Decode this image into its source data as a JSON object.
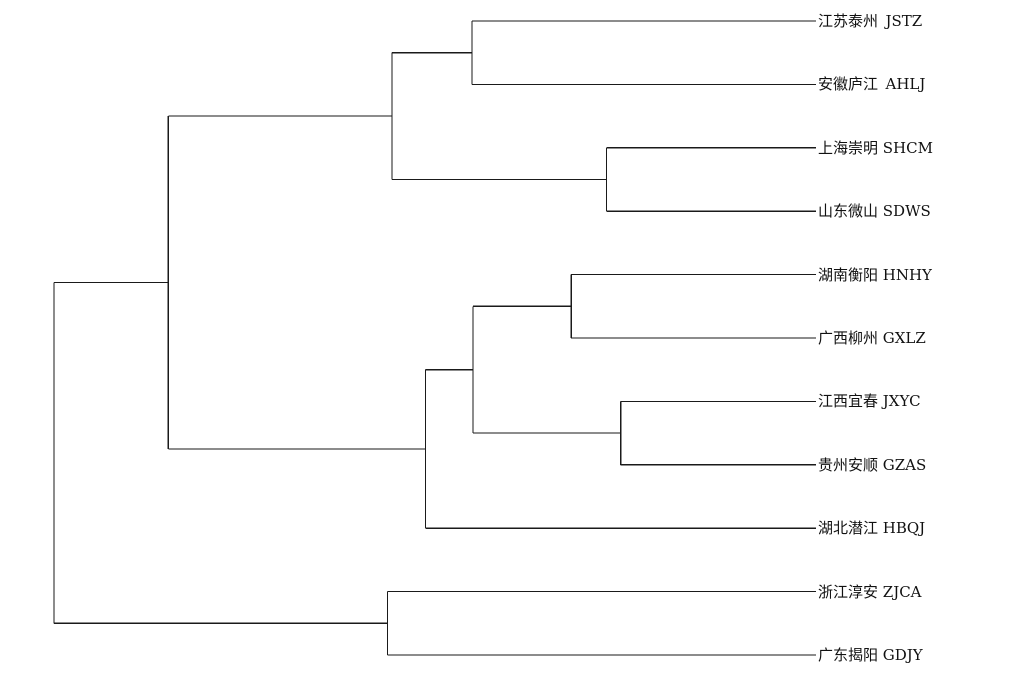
{
  "dendrogram": {
    "leaves": [
      {
        "name": "江苏泰州",
        "code": "JSTZ",
        "sep": "  "
      },
      {
        "name": "安徽庐江",
        "code": "AHLJ",
        "sep": "  "
      },
      {
        "name": "上海崇明",
        "code": "SHCM",
        "sep": " "
      },
      {
        "name": "山东微山",
        "code": "SDWS",
        "sep": " "
      },
      {
        "name": "湖南衡阳",
        "code": "HNHY",
        "sep": " "
      },
      {
        "name": "广西柳州",
        "code": "GXLZ",
        "sep": " "
      },
      {
        "name": "江西宜春",
        "code": "JXYC",
        "sep": " "
      },
      {
        "name": "贵州安顺",
        "code": "GZAS",
        "sep": " "
      },
      {
        "name": "湖北潜江",
        "code": "HBQJ",
        "sep": " "
      },
      {
        "name": "浙江淳安",
        "code": "ZJCA",
        "sep": " "
      },
      {
        "name": "广东揭阳",
        "code": "GDJY",
        "sep": " "
      }
    ],
    "merges": [
      {
        "id": "n1",
        "children": [
          "L0",
          "L1"
        ],
        "height": 0.361
      },
      {
        "id": "n2",
        "children": [
          "L2",
          "L3"
        ],
        "height": 0.22
      },
      {
        "id": "n3",
        "children": [
          "n1",
          "n2"
        ],
        "height": 0.445
      },
      {
        "id": "n4",
        "children": [
          "L4",
          "L5"
        ],
        "height": 0.257
      },
      {
        "id": "n5",
        "children": [
          "L6",
          "L7"
        ],
        "height": 0.205
      },
      {
        "id": "n6",
        "children": [
          "n4",
          "n5"
        ],
        "height": 0.36
      },
      {
        "id": "n7",
        "children": [
          "n6",
          "L8"
        ],
        "height": 0.41
      },
      {
        "id": "n8",
        "children": [
          "n3",
          "n7"
        ],
        "height": 0.68
      },
      {
        "id": "n9",
        "children": [
          "L9",
          "L10"
        ],
        "height": 0.45
      },
      {
        "id": "n10",
        "children": [
          "n8",
          "n9"
        ],
        "height": 0.8
      }
    ]
  }
}
